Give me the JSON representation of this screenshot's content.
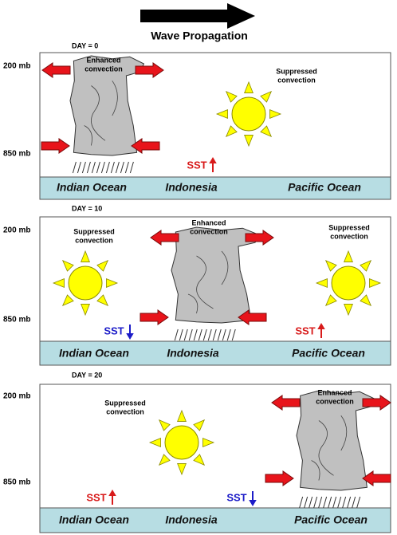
{
  "header": {
    "title": "Wave Propagation"
  },
  "panels": [
    {
      "day": "DAY = 0",
      "levels": [
        "200 mb",
        "850 mb"
      ],
      "convection": [
        [
          "Enhanced",
          "convection"
        ],
        [
          "Suppressed",
          "convection"
        ]
      ],
      "sst": [
        "SST"
      ],
      "regions": [
        "Indian Ocean",
        "Indonesia",
        "Pacific Ocean"
      ]
    },
    {
      "day": "DAY = 10",
      "levels": [
        "200 mb",
        "850 mb"
      ],
      "convection": [
        [
          "Suppressed",
          "convection"
        ],
        [
          "Enhanced",
          "convection"
        ],
        [
          "Suppressed",
          "convection"
        ]
      ],
      "sst": [
        "SST",
        "SST"
      ],
      "regions": [
        "Indian Ocean",
        "Indonesia",
        "Pacific Ocean"
      ]
    },
    {
      "day": "DAY = 20",
      "levels": [
        "200 mb",
        "850 mb"
      ],
      "convection": [
        [
          "Suppressed",
          "convection"
        ],
        [
          "Enhanced",
          "convection"
        ]
      ],
      "sst": [
        "SST",
        "SST"
      ],
      "regions": [
        "Indian Ocean",
        "Indonesia",
        "Pacific Ocean"
      ]
    }
  ]
}
